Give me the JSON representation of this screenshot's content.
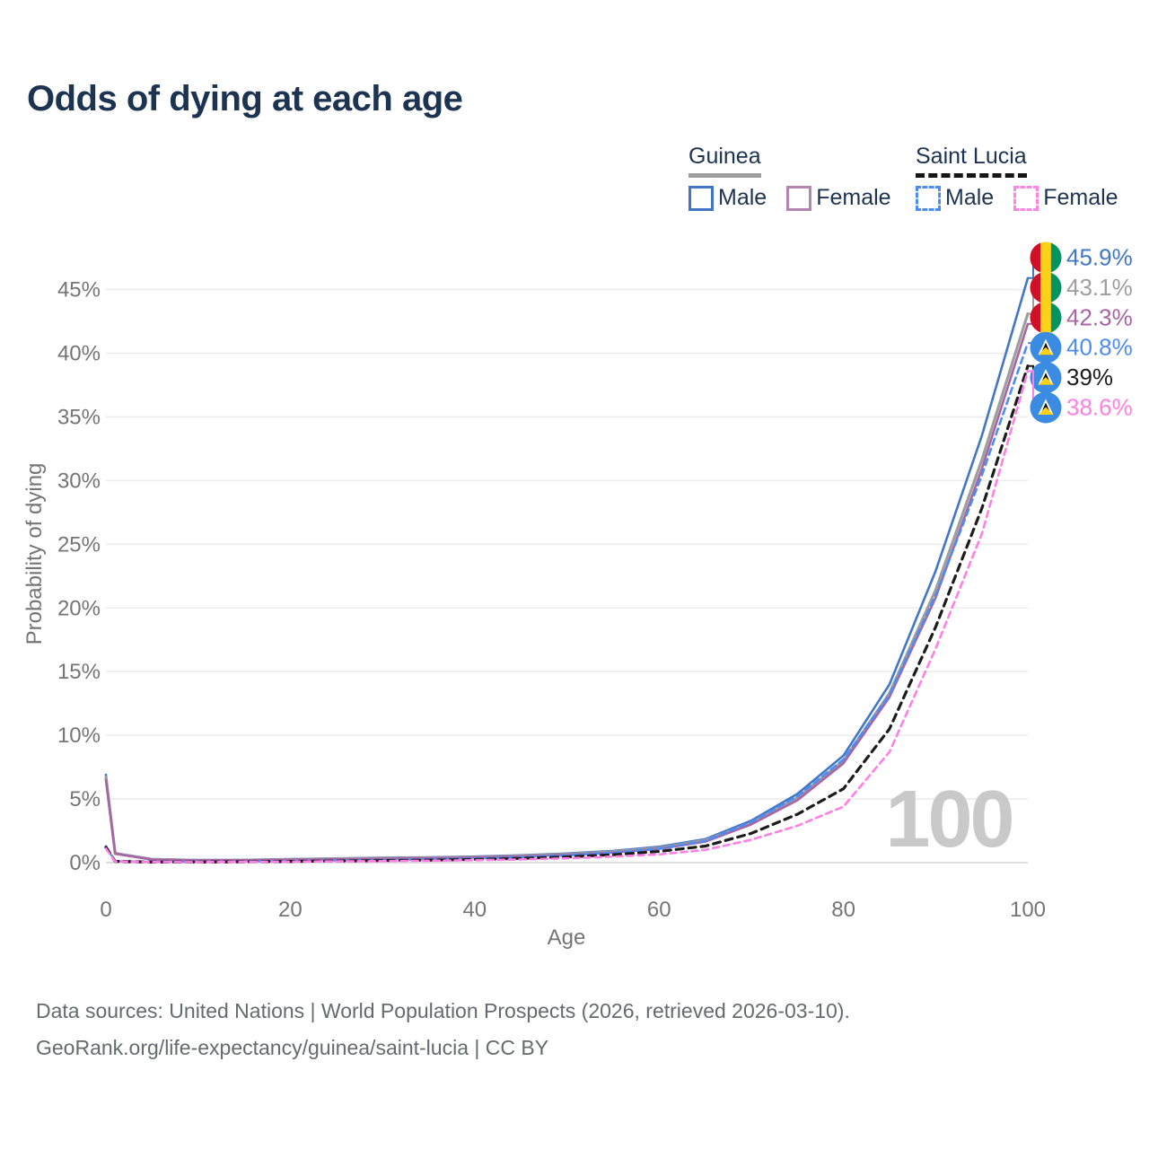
{
  "title": "Odds of dying at each age",
  "legend": {
    "groups": [
      {
        "label": "Guinea",
        "underline_color": "#9e9e9e",
        "underline_style": "solid",
        "items": [
          {
            "label": "Male",
            "color": "#4277c6",
            "dash": false
          },
          {
            "label": "Female",
            "color": "#b286b0",
            "dash": false
          }
        ]
      },
      {
        "label": "Saint Lucia",
        "underline_color": "#161616",
        "underline_style": "dashed",
        "items": [
          {
            "label": "Male",
            "color": "#4d8cf2",
            "dash": true
          },
          {
            "label": "Female",
            "color": "#ff85e3",
            "dash": true
          }
        ]
      }
    ]
  },
  "chart_data": {
    "type": "line",
    "title": "Odds of dying at each age",
    "xlabel": "Age",
    "ylabel": "Probability of dying",
    "xlim": [
      0,
      100
    ],
    "ylim": [
      0,
      48
    ],
    "x_ticks": [
      0,
      20,
      40,
      60,
      80,
      100
    ],
    "y_ticks": [
      0,
      5,
      10,
      15,
      20,
      25,
      30,
      35,
      40,
      45
    ],
    "y_tick_suffix": "%",
    "grid": "horizontal",
    "legend_position": "top-right",
    "watermark": "100",
    "x": [
      0,
      1,
      5,
      10,
      15,
      20,
      25,
      30,
      35,
      40,
      45,
      50,
      55,
      60,
      65,
      70,
      75,
      80,
      85,
      90,
      95,
      100
    ],
    "series": [
      {
        "name": "Guinea Male",
        "country": "Guinea",
        "sex": "Male",
        "color": "#4277c6",
        "dash": "",
        "width": 2.6,
        "flag": "guinea",
        "end_label": "45.9%",
        "end_label_color": "#4277c6",
        "values": [
          6.9,
          0.75,
          0.28,
          0.2,
          0.22,
          0.28,
          0.33,
          0.38,
          0.42,
          0.48,
          0.58,
          0.72,
          0.92,
          1.25,
          1.85,
          3.3,
          5.4,
          8.4,
          14.0,
          22.9,
          33.5,
          45.9
        ]
      },
      {
        "name": "Guinea",
        "country": "Guinea",
        "sex": "Both",
        "color": "#9e9e9e",
        "dash": "",
        "width": 3.2,
        "flag": "guinea",
        "end_label": "43.1%",
        "end_label_color": "#9e9e9e",
        "values": [
          6.7,
          0.72,
          0.26,
          0.19,
          0.2,
          0.25,
          0.3,
          0.34,
          0.38,
          0.44,
          0.53,
          0.66,
          0.85,
          1.15,
          1.75,
          3.1,
          5.1,
          8.0,
          13.3,
          21.4,
          31.6,
          43.1
        ]
      },
      {
        "name": "Guinea Female",
        "country": "Guinea",
        "sex": "Female",
        "color": "#a765a4",
        "dash": "",
        "width": 2.6,
        "flag": "guinea",
        "end_label": "42.3%",
        "end_label_color": "#a765a4",
        "values": [
          6.5,
          0.7,
          0.25,
          0.18,
          0.19,
          0.23,
          0.27,
          0.31,
          0.35,
          0.41,
          0.49,
          0.61,
          0.79,
          1.08,
          1.65,
          3.0,
          4.9,
          7.8,
          13.0,
          20.8,
          30.9,
          42.3
        ]
      },
      {
        "name": "Saint Lucia Male",
        "country": "Saint Lucia",
        "sex": "Male",
        "color": "#4d8cf2",
        "dash": "7 5",
        "width": 2.6,
        "flag": "saint-lucia",
        "end_label": "40.8%",
        "end_label_color": "#4d8cf2",
        "values": [
          1.3,
          0.12,
          0.06,
          0.06,
          0.09,
          0.13,
          0.17,
          0.21,
          0.26,
          0.33,
          0.43,
          0.57,
          0.78,
          1.1,
          1.7,
          3.2,
          5.2,
          8.1,
          13.2,
          21.0,
          30.4,
          40.8
        ]
      },
      {
        "name": "Saint Lucia",
        "country": "Saint Lucia",
        "sex": "Both",
        "color": "#1c1c1c",
        "dash": "8 6",
        "width": 3.2,
        "flag": "saint-lucia",
        "end_label": "39%",
        "end_label_color": "#1c1c1c",
        "values": [
          1.2,
          0.1,
          0.05,
          0.05,
          0.07,
          0.1,
          0.13,
          0.16,
          0.2,
          0.25,
          0.33,
          0.45,
          0.62,
          0.88,
          1.3,
          2.3,
          3.8,
          5.8,
          10.5,
          18.5,
          27.8,
          39.0
        ]
      },
      {
        "name": "Saint Lucia Female",
        "country": "Saint Lucia",
        "sex": "Female",
        "color": "#ff80e4",
        "dash": "7 5",
        "width": 2.6,
        "flag": "saint-lucia",
        "end_label": "38.6%",
        "end_label_color": "#ff80e4",
        "values": [
          1.1,
          0.09,
          0.05,
          0.04,
          0.06,
          0.08,
          0.1,
          0.12,
          0.15,
          0.19,
          0.25,
          0.34,
          0.47,
          0.65,
          1.0,
          1.8,
          2.9,
          4.4,
          8.7,
          16.8,
          25.8,
          38.6
        ]
      }
    ],
    "flag_colors": {
      "guinea": {
        "left": "#CE1126",
        "middle": "#FCD116",
        "right": "#009460"
      },
      "saint_lucia": {
        "field": "#3B8BE2",
        "triangle": "#FCD116",
        "triangle_border": "#FFFFFF",
        "inner_triangle": "#101010"
      }
    }
  },
  "footer": {
    "line1": "Data sources: United Nations | World Population Prospects (2026, retrieved 2026-03-10).",
    "line2": "GeoRank.org/life-expectancy/guinea/saint-lucia | CC BY"
  }
}
